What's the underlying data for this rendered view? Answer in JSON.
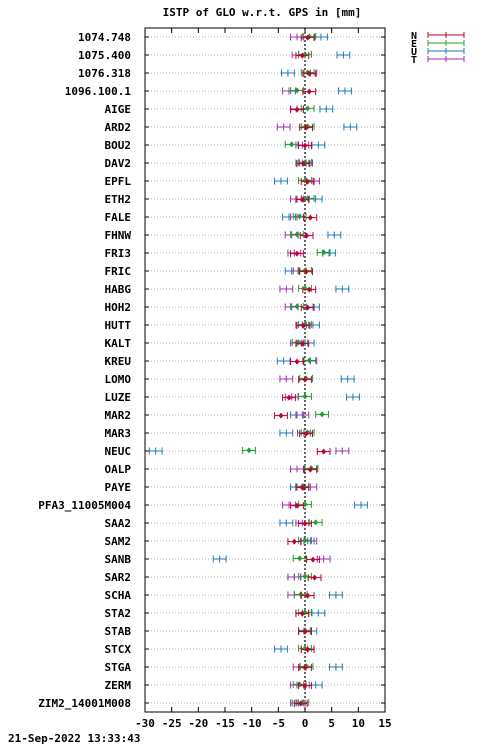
{
  "chart_data": {
    "type": "scatter",
    "title": "ISTP of GLO w.r.t. GPS in [mm]",
    "footer": "21-Sep-2022 13:33:43",
    "xlim": [
      -30,
      15
    ],
    "xticks": [
      -30,
      -25,
      -20,
      -15,
      -10,
      -5,
      0,
      5,
      10,
      15
    ],
    "grid": true,
    "legend_position": "top-right-outside",
    "legend": [
      {
        "key": "N",
        "color": "#c0002f"
      },
      {
        "key": "E",
        "color": "#1f9e2f"
      },
      {
        "key": "U",
        "color": "#1f78b4"
      },
      {
        "key": "T",
        "color": "#9b2fae"
      }
    ],
    "stations": [
      {
        "name": "1074.748",
        "N": 0.5,
        "E": 0.8,
        "U": 3.0,
        "T": -1.5
      },
      {
        "name": "1075.400",
        "N": -0.5,
        "E": 0.0,
        "U": 7.2,
        "T": -1.2
      },
      {
        "name": "1076.318",
        "N": 0.8,
        "E": 0.5,
        "U": -3.2,
        "T": 1.0
      },
      {
        "name": "1096.100.1",
        "N": 0.8,
        "E": -1.5,
        "U": 7.5,
        "T": -3.0
      },
      {
        "name": "AIGE",
        "N": -1.5,
        "E": 0.5,
        "U": 4.0,
        "T": -1.5
      },
      {
        "name": "ARD2",
        "N": 0.2,
        "E": 0.5,
        "U": 8.5,
        "T": -4.0
      },
      {
        "name": "BOU2",
        "N": 0.0,
        "E": -2.5,
        "U": 2.5,
        "T": -0.5
      },
      {
        "name": "DAV2",
        "N": -0.3,
        "E": 0.0,
        "U": -0.5,
        "T": 0.2
      },
      {
        "name": "EPFL",
        "N": 0.5,
        "E": 0.0,
        "U": -4.5,
        "T": 1.5
      },
      {
        "name": "ETH2",
        "N": -0.5,
        "E": 0.5,
        "U": 2.0,
        "T": -1.5
      },
      {
        "name": "FALE",
        "N": 1.0,
        "E": -1.0,
        "U": -3.0,
        "T": -1.5
      },
      {
        "name": "FHNW",
        "N": 0.3,
        "E": -1.5,
        "U": 5.5,
        "T": -2.5
      },
      {
        "name": "FRI3",
        "N": -1.5,
        "E": 3.5,
        "U": 4.5,
        "T": -2.0
      },
      {
        "name": "FRIC",
        "N": 0.2,
        "E": 0.0,
        "U": -2.5,
        "T": -1.0
      },
      {
        "name": "HABG",
        "N": 0.8,
        "E": 0.0,
        "U": 7.0,
        "T": -3.5
      },
      {
        "name": "HOH2",
        "N": 0.5,
        "E": -1.5,
        "U": 1.5,
        "T": -2.5
      },
      {
        "name": "HUTT",
        "N": -0.3,
        "E": 0.0,
        "U": 1.5,
        "T": -0.5
      },
      {
        "name": "KALT",
        "N": -0.5,
        "E": -1.2,
        "U": 0.5,
        "T": -1.5
      },
      {
        "name": "KREU",
        "N": -1.5,
        "E": 0.8,
        "U": -4.0,
        "T": 1.0
      },
      {
        "name": "LOMO",
        "N": 0.0,
        "E": 0.2,
        "U": 8.0,
        "T": -3.5
      },
      {
        "name": "LUZE",
        "N": -3.0,
        "E": 0.0,
        "U": 9.0,
        "T": -2.5
      },
      {
        "name": "MAR2",
        "N": -4.5,
        "E": 3.2,
        "U": -1.5,
        "T": -0.5
      },
      {
        "name": "MAR3",
        "N": 0.2,
        "E": 0.5,
        "U": -3.5,
        "T": -0.2
      },
      {
        "name": "NEUC",
        "N": 3.5,
        "E": -10.5,
        "U": -28.0,
        "T": 7.0
      },
      {
        "name": "OALP",
        "N": 1.0,
        "E": 1.2,
        "U": 1.0,
        "T": -1.5
      },
      {
        "name": "PAYE",
        "N": -0.5,
        "E": -0.5,
        "U": -1.5,
        "T": 1.0
      },
      {
        "name": "PFA3_11005M004",
        "N": -1.5,
        "E": 0.0,
        "U": 10.5,
        "T": -3.0
      },
      {
        "name": "SAA2",
        "N": 0.0,
        "E": 2.0,
        "U": -3.5,
        "T": -0.5
      },
      {
        "name": "SAM2",
        "N": -2.0,
        "E": 0.0,
        "U": 0.5,
        "T": 1.0
      },
      {
        "name": "SANB",
        "N": 1.5,
        "E": -1.0,
        "U": -16.0,
        "T": 3.5
      },
      {
        "name": "SAR2",
        "N": 1.8,
        "E": 0.0,
        "U": -2.0,
        "T": -2.0
      },
      {
        "name": "SCHA",
        "N": 0.5,
        "E": -0.8,
        "U": 5.8,
        "T": -2.0
      },
      {
        "name": "STA2",
        "N": -0.5,
        "E": 0.0,
        "U": 2.5,
        "T": -0.5
      },
      {
        "name": "STAB",
        "N": 0.0,
        "E": 0.0,
        "U": 1.0,
        "T": 0.0
      },
      {
        "name": "STCX",
        "N": 0.5,
        "E": 0.0,
        "U": -4.5,
        "T": 0.5
      },
      {
        "name": "STGA",
        "N": 0.0,
        "E": 0.3,
        "U": 5.8,
        "T": -1.0
      },
      {
        "name": "ZERM",
        "N": 0.0,
        "E": -1.0,
        "U": 2.0,
        "T": -1.5
      },
      {
        "name": "ZIM2_14001M008",
        "N": -0.8,
        "E": -0.5,
        "U": -1.5,
        "T": -1.2
      }
    ]
  }
}
